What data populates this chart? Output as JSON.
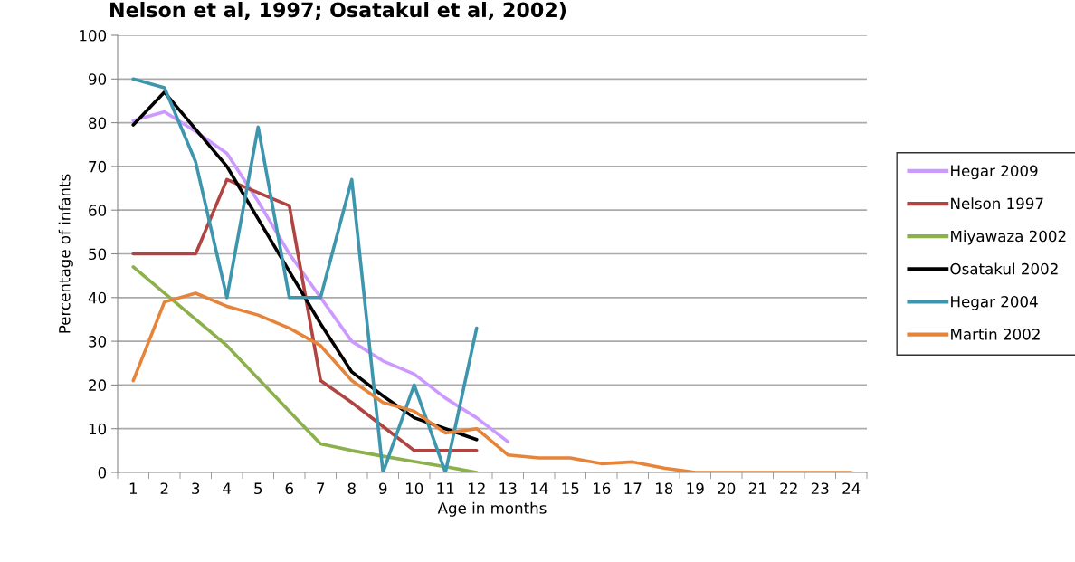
{
  "chart_data": {
    "type": "line",
    "title": "Nelson et al, 1997; Osatakul et al, 2002)",
    "xlabel": "Age in months",
    "ylabel": "Percentage of infants",
    "categories": [
      "1",
      "2",
      "3",
      "4",
      "5",
      "6",
      "7",
      "8",
      "9",
      "10",
      "11",
      "12",
      "13",
      "14",
      "15",
      "16",
      "17",
      "18",
      "19",
      "20",
      "21",
      "22",
      "23",
      "24"
    ],
    "series": [
      {
        "name": "Hegar 2009",
        "color": "#cc99ff",
        "values": [
          80.5,
          82.5,
          78,
          73,
          62,
          50,
          40,
          30,
          25.5,
          22.5,
          17,
          12.5,
          7,
          null,
          null,
          null,
          null,
          null,
          null,
          null,
          null,
          null,
          null,
          null
        ]
      },
      {
        "name": "Nelson 1997",
        "color": "#b04442",
        "values": [
          50,
          50,
          50,
          67,
          64,
          61,
          21,
          16,
          10.5,
          5,
          5,
          5,
          null,
          null,
          null,
          null,
          null,
          null,
          null,
          null,
          null,
          null,
          null,
          null
        ]
      },
      {
        "name": "Miyawaza 2002",
        "color": "#8bb04c",
        "values": [
          47,
          41,
          35,
          29,
          21.5,
          14,
          6.5,
          5,
          3.7,
          2.5,
          1.3,
          0,
          null,
          null,
          null,
          null,
          null,
          null,
          null,
          null,
          null,
          null,
          null,
          null
        ]
      },
      {
        "name": "Osatakul 2002",
        "color": "#000000",
        "values": [
          79.5,
          87,
          78.5,
          70,
          58,
          46,
          34,
          23,
          17.5,
          12.5,
          10,
          7.5,
          null,
          null,
          null,
          null,
          null,
          null,
          null,
          null,
          null,
          null,
          null,
          null
        ]
      },
      {
        "name": "Hegar 2004",
        "color": "#3d96ae",
        "values": [
          90,
          88,
          71,
          40,
          79,
          40,
          40,
          67,
          0,
          20,
          0,
          33,
          null,
          null,
          null,
          null,
          null,
          null,
          null,
          null,
          null,
          null,
          null,
          null
        ]
      },
      {
        "name": "Martin 2002",
        "color": "#e6843a",
        "values": [
          21,
          39,
          41,
          38,
          36,
          33,
          29,
          21,
          16,
          14,
          9,
          10,
          4,
          3.3,
          3.3,
          2,
          2.4,
          1,
          0,
          0,
          0,
          0,
          0,
          0
        ]
      }
    ],
    "ylim": [
      0,
      100
    ],
    "yticks": [
      0,
      10,
      20,
      30,
      40,
      50,
      60,
      70,
      80,
      90,
      100
    ],
    "grid": "y",
    "legend": "right",
    "marker": "none",
    "line_style": "solid"
  }
}
